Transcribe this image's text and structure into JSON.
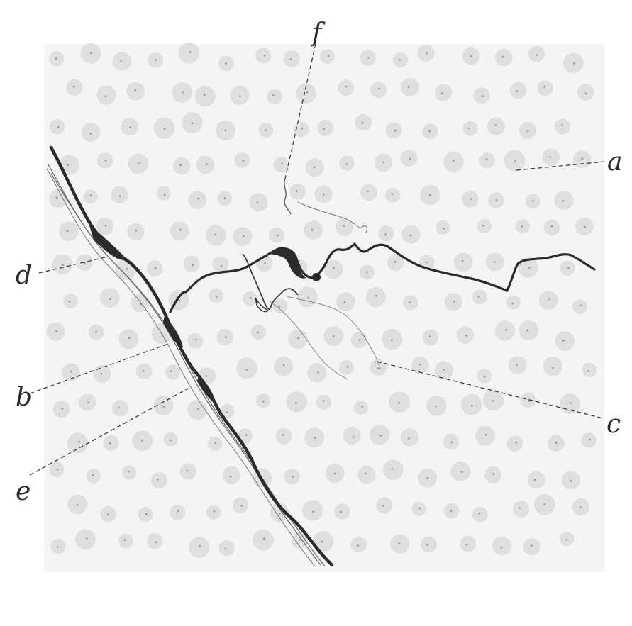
{
  "figure": {
    "labels": {
      "a": "a",
      "b": "b",
      "c": "c",
      "d": "d",
      "e": "e",
      "f": "f"
    },
    "colors": {
      "background": "#ffffff",
      "tissue": "#f2f3f2",
      "nucleus": "#d9dada",
      "fiber_dark": "#2b2b2b",
      "fiber_thin": "#6a6a6a",
      "label": "#2a2a2a"
    }
  }
}
